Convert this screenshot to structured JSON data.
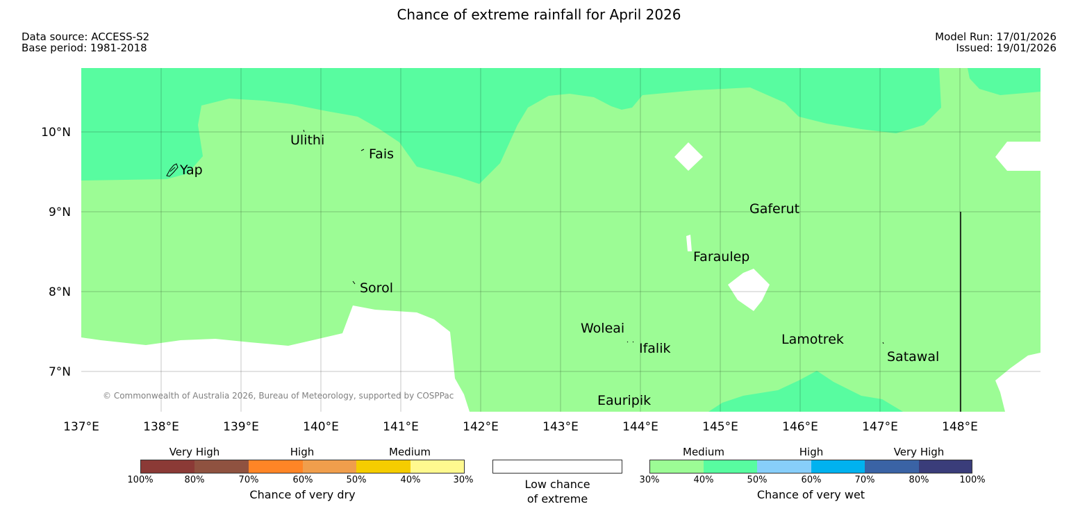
{
  "header": {
    "title": "Chance of extreme rainfall for April 2026",
    "source": "Data source: ACCESS-S2",
    "base_period": "Base period: 1981-2018",
    "model_run": "Model Run: 17/01/2026",
    "issued": "Issued: 19/01/2026"
  },
  "map": {
    "copyright": "© Commonwealth of Australia 2026, Bureau of Meteorology, supported by COSPPac",
    "lat_labels": [
      "10°N",
      "9°N",
      "8°N",
      "7°N"
    ],
    "lon_labels": [
      "137°E",
      "138°E",
      "139°E",
      "140°E",
      "141°E",
      "142°E",
      "143°E",
      "144°E",
      "145°E",
      "146°E",
      "147°E",
      "148°E"
    ],
    "places": [
      "Ulithi",
      "Fais",
      "Yap",
      "Gaferut",
      "Faraulep",
      "Sorol",
      "Woleai",
      "Ifalik",
      "Lamotrek",
      "Satawal",
      "Eauripik"
    ],
    "colors": {
      "wet_30_40": "#9cfc95",
      "wet_40_50": "#58fca0",
      "low": "#ffffff"
    }
  },
  "legend": {
    "dry": {
      "categories": [
        "Very High",
        "High",
        "Medium"
      ],
      "ticks": [
        "100%",
        "80%",
        "70%",
        "60%",
        "50%",
        "40%",
        "30%"
      ],
      "colors": [
        "#8b3a36",
        "#8f5240",
        "#ff8526",
        "#f09e4c",
        "#f5cd00",
        "#fff98f"
      ],
      "title": "Chance of very dry"
    },
    "low": {
      "line1": "Low chance",
      "line2": "of extreme"
    },
    "wet": {
      "categories": [
        "Medium",
        "High",
        "Very High"
      ],
      "ticks": [
        "30%",
        "40%",
        "50%",
        "60%",
        "70%",
        "80%",
        "100%"
      ],
      "colors": [
        "#9cfc95",
        "#58fca0",
        "#87cefa",
        "#00b2ef",
        "#3a63a5",
        "#3a3d7a"
      ],
      "title": "Chance of very wet"
    }
  }
}
